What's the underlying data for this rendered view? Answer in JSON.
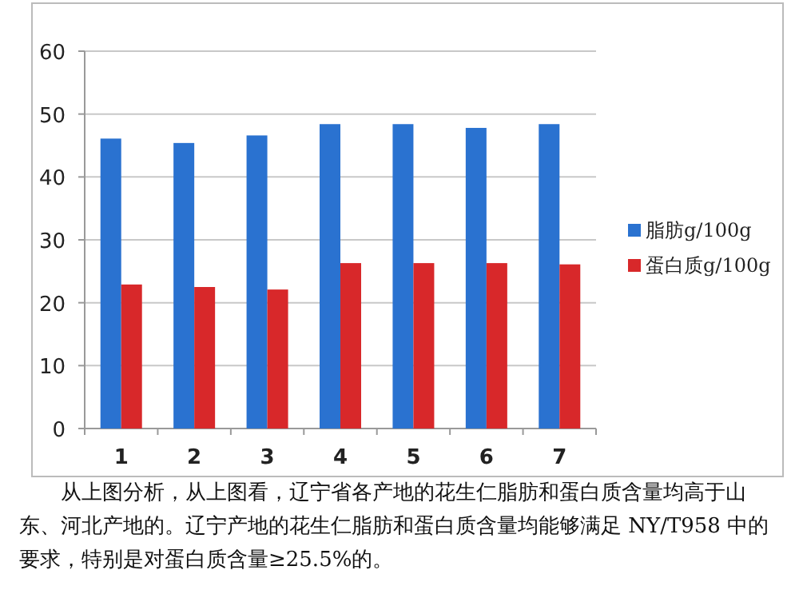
{
  "chart_data": {
    "type": "bar",
    "categories": [
      "1",
      "2",
      "3",
      "4",
      "5",
      "6",
      "7"
    ],
    "series": [
      {
        "name": "脂肪g/100g",
        "color": "#2a72d0",
        "values": [
          46.1,
          45.4,
          46.6,
          48.4,
          48.4,
          47.8,
          48.4
        ]
      },
      {
        "name": "蛋白质g/100g",
        "color": "#d8282a",
        "values": [
          22.9,
          22.5,
          22.1,
          26.3,
          26.3,
          26.3,
          26.1
        ]
      }
    ],
    "ylim": [
      0,
      60
    ],
    "yticks": [
      0,
      10,
      20,
      30,
      40,
      50,
      60
    ],
    "grid": "y",
    "legend": "right",
    "annotations": [
      "从上图分析，从上图看，辽宁省各产地的花生仁脂肪和蛋白质含量均高于山东、河北产地的。辽宁产地的花生仁脂肪和蛋白质含量均能够满足 NY/T958 中的要求，特别是对蛋白质含量≥25.5%的。"
    ]
  }
}
